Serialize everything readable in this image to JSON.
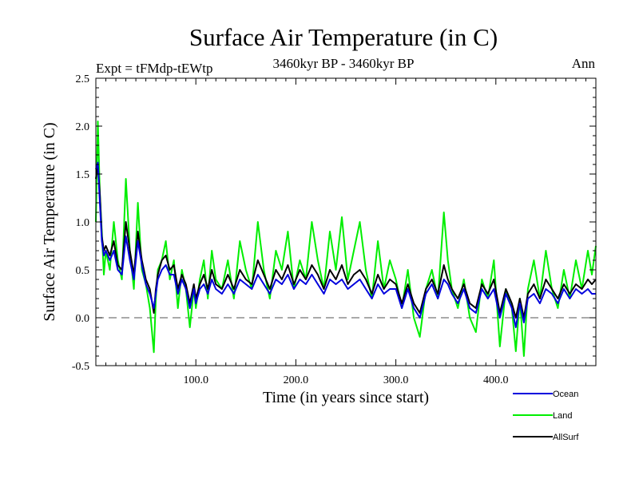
{
  "chart_data": {
    "type": "line",
    "title": "Surface Air Temperature (in C)",
    "subtitle_left": "Expt = tFMdp-tEWtp",
    "subtitle_center": "3460kyr BP - 3460kyr BP",
    "subtitle_right": "Ann",
    "xlabel": "Time (in years since start)",
    "ylabel": "Surface Air Temperature (in C)",
    "xlim": [
      0,
      500
    ],
    "ylim": [
      -0.5,
      2.5
    ],
    "x_ticks": [
      {
        "value": 100,
        "label": "100.0"
      },
      {
        "value": 200,
        "label": "200.0"
      },
      {
        "value": 300,
        "label": "300.0"
      },
      {
        "value": 400,
        "label": "400.0"
      }
    ],
    "y_ticks": [
      {
        "value": -0.5,
        "label": "-0.5"
      },
      {
        "value": 0.0,
        "label": "0.0"
      },
      {
        "value": 0.5,
        "label": "0.5"
      },
      {
        "value": 1.0,
        "label": "1.0"
      },
      {
        "value": 1.5,
        "label": "1.5"
      },
      {
        "value": 2.0,
        "label": "2.0"
      },
      {
        "value": 2.5,
        "label": "2.5"
      }
    ],
    "reference_line": {
      "y": 0.0,
      "style": "dashed"
    },
    "legend_placement": "bottom-right, below plot",
    "series": [
      {
        "name": "Land",
        "color": "#00ee00",
        "x": [
          0,
          2,
          4,
          6,
          8,
          10,
          14,
          18,
          22,
          26,
          30,
          34,
          38,
          42,
          46,
          50,
          54,
          58,
          60,
          62,
          66,
          70,
          74,
          78,
          82,
          86,
          90,
          94,
          98,
          100,
          104,
          108,
          112,
          116,
          120,
          126,
          132,
          138,
          144,
          150,
          156,
          162,
          168,
          174,
          180,
          186,
          192,
          198,
          204,
          210,
          216,
          222,
          228,
          234,
          240,
          246,
          252,
          258,
          264,
          270,
          276,
          282,
          288,
          294,
          300,
          306,
          312,
          318,
          324,
          330,
          336,
          342,
          348,
          352,
          356,
          362,
          368,
          374,
          380,
          386,
          392,
          398,
          404,
          410,
          416,
          420,
          424,
          428,
          432,
          438,
          444,
          450,
          456,
          462,
          468,
          474,
          480,
          486,
          492,
          496,
          500
        ],
        "y": [
          1.0,
          2.05,
          1.3,
          0.9,
          0.45,
          0.7,
          0.5,
          1.0,
          0.6,
          0.4,
          1.45,
          0.7,
          0.3,
          1.2,
          0.5,
          0.35,
          0.1,
          -0.36,
          0.2,
          0.5,
          0.6,
          0.8,
          0.4,
          0.6,
          0.1,
          0.5,
          0.3,
          -0.1,
          0.3,
          0.1,
          0.4,
          0.6,
          0.2,
          0.7,
          0.4,
          0.3,
          0.6,
          0.2,
          0.8,
          0.5,
          0.3,
          1.0,
          0.5,
          0.2,
          0.7,
          0.5,
          0.9,
          0.3,
          0.6,
          0.4,
          1.0,
          0.6,
          0.3,
          0.9,
          0.5,
          1.05,
          0.4,
          0.7,
          1.0,
          0.5,
          0.2,
          0.8,
          0.3,
          0.6,
          0.4,
          0.1,
          0.5,
          0.0,
          -0.2,
          0.3,
          0.5,
          0.2,
          1.1,
          0.6,
          0.3,
          0.1,
          0.4,
          0.0,
          -0.15,
          0.4,
          0.2,
          0.6,
          -0.3,
          0.3,
          0.1,
          -0.35,
          0.2,
          -0.4,
          0.3,
          0.6,
          0.2,
          0.7,
          0.3,
          0.1,
          0.5,
          0.2,
          0.6,
          0.3,
          0.7,
          0.45,
          0.75
        ]
      },
      {
        "name": "AllSurf",
        "color": "#000000",
        "x": [
          0,
          2,
          4,
          6,
          8,
          10,
          14,
          18,
          22,
          26,
          30,
          34,
          38,
          42,
          46,
          50,
          54,
          58,
          60,
          62,
          66,
          70,
          74,
          78,
          82,
          86,
          90,
          94,
          98,
          100,
          104,
          108,
          112,
          116,
          120,
          126,
          132,
          138,
          144,
          150,
          156,
          162,
          168,
          174,
          180,
          186,
          192,
          198,
          204,
          210,
          216,
          222,
          228,
          234,
          240,
          246,
          252,
          258,
          264,
          270,
          276,
          282,
          288,
          294,
          300,
          306,
          312,
          318,
          324,
          330,
          336,
          342,
          348,
          352,
          356,
          362,
          368,
          374,
          380,
          386,
          392,
          398,
          404,
          410,
          416,
          420,
          424,
          428,
          432,
          438,
          444,
          450,
          456,
          462,
          468,
          474,
          480,
          486,
          492,
          496,
          500
        ],
        "y": [
          1.45,
          1.6,
          1.3,
          0.85,
          0.7,
          0.75,
          0.65,
          0.8,
          0.55,
          0.5,
          1.0,
          0.7,
          0.45,
          0.9,
          0.6,
          0.4,
          0.3,
          0.05,
          0.3,
          0.45,
          0.6,
          0.65,
          0.5,
          0.55,
          0.3,
          0.45,
          0.35,
          0.15,
          0.35,
          0.2,
          0.35,
          0.45,
          0.3,
          0.5,
          0.35,
          0.3,
          0.45,
          0.3,
          0.5,
          0.4,
          0.35,
          0.6,
          0.45,
          0.3,
          0.5,
          0.4,
          0.55,
          0.35,
          0.5,
          0.4,
          0.55,
          0.45,
          0.3,
          0.5,
          0.4,
          0.55,
          0.35,
          0.45,
          0.5,
          0.4,
          0.25,
          0.45,
          0.3,
          0.4,
          0.35,
          0.15,
          0.35,
          0.15,
          0.05,
          0.3,
          0.4,
          0.25,
          0.55,
          0.4,
          0.3,
          0.2,
          0.35,
          0.15,
          0.1,
          0.35,
          0.25,
          0.4,
          0.05,
          0.3,
          0.15,
          0.0,
          0.2,
          0.0,
          0.25,
          0.35,
          0.2,
          0.4,
          0.3,
          0.2,
          0.35,
          0.25,
          0.35,
          0.3,
          0.4,
          0.35,
          0.4
        ]
      },
      {
        "name": "Ocean",
        "color": "#0000dd",
        "x": [
          0,
          2,
          4,
          6,
          8,
          10,
          14,
          18,
          22,
          26,
          30,
          34,
          38,
          42,
          46,
          50,
          54,
          58,
          60,
          62,
          66,
          70,
          74,
          78,
          82,
          86,
          90,
          94,
          98,
          100,
          104,
          108,
          112,
          116,
          120,
          126,
          132,
          138,
          144,
          150,
          156,
          162,
          168,
          174,
          180,
          186,
          192,
          198,
          204,
          210,
          216,
          222,
          228,
          234,
          240,
          246,
          252,
          258,
          264,
          270,
          276,
          282,
          288,
          294,
          300,
          306,
          312,
          318,
          324,
          330,
          336,
          342,
          348,
          352,
          356,
          362,
          368,
          374,
          380,
          386,
          392,
          398,
          404,
          410,
          416,
          420,
          424,
          428,
          432,
          438,
          444,
          450,
          456,
          462,
          468,
          474,
          480,
          486,
          492,
          496,
          500
        ],
        "y": [
          1.55,
          1.62,
          1.2,
          0.8,
          0.65,
          0.7,
          0.6,
          0.7,
          0.5,
          0.45,
          0.85,
          0.6,
          0.4,
          0.8,
          0.55,
          0.35,
          0.25,
          0.1,
          0.25,
          0.4,
          0.5,
          0.55,
          0.45,
          0.45,
          0.25,
          0.4,
          0.3,
          0.1,
          0.3,
          0.15,
          0.3,
          0.35,
          0.25,
          0.4,
          0.3,
          0.25,
          0.35,
          0.25,
          0.4,
          0.35,
          0.3,
          0.45,
          0.35,
          0.25,
          0.4,
          0.35,
          0.45,
          0.3,
          0.4,
          0.35,
          0.45,
          0.35,
          0.25,
          0.4,
          0.35,
          0.4,
          0.3,
          0.35,
          0.4,
          0.3,
          0.2,
          0.35,
          0.25,
          0.3,
          0.3,
          0.1,
          0.3,
          0.1,
          0.0,
          0.25,
          0.35,
          0.2,
          0.4,
          0.35,
          0.25,
          0.15,
          0.3,
          0.1,
          0.05,
          0.3,
          0.2,
          0.3,
          0.0,
          0.25,
          0.1,
          -0.1,
          0.15,
          -0.05,
          0.2,
          0.25,
          0.15,
          0.3,
          0.25,
          0.15,
          0.3,
          0.2,
          0.3,
          0.25,
          0.3,
          0.25,
          0.25
        ]
      }
    ]
  }
}
